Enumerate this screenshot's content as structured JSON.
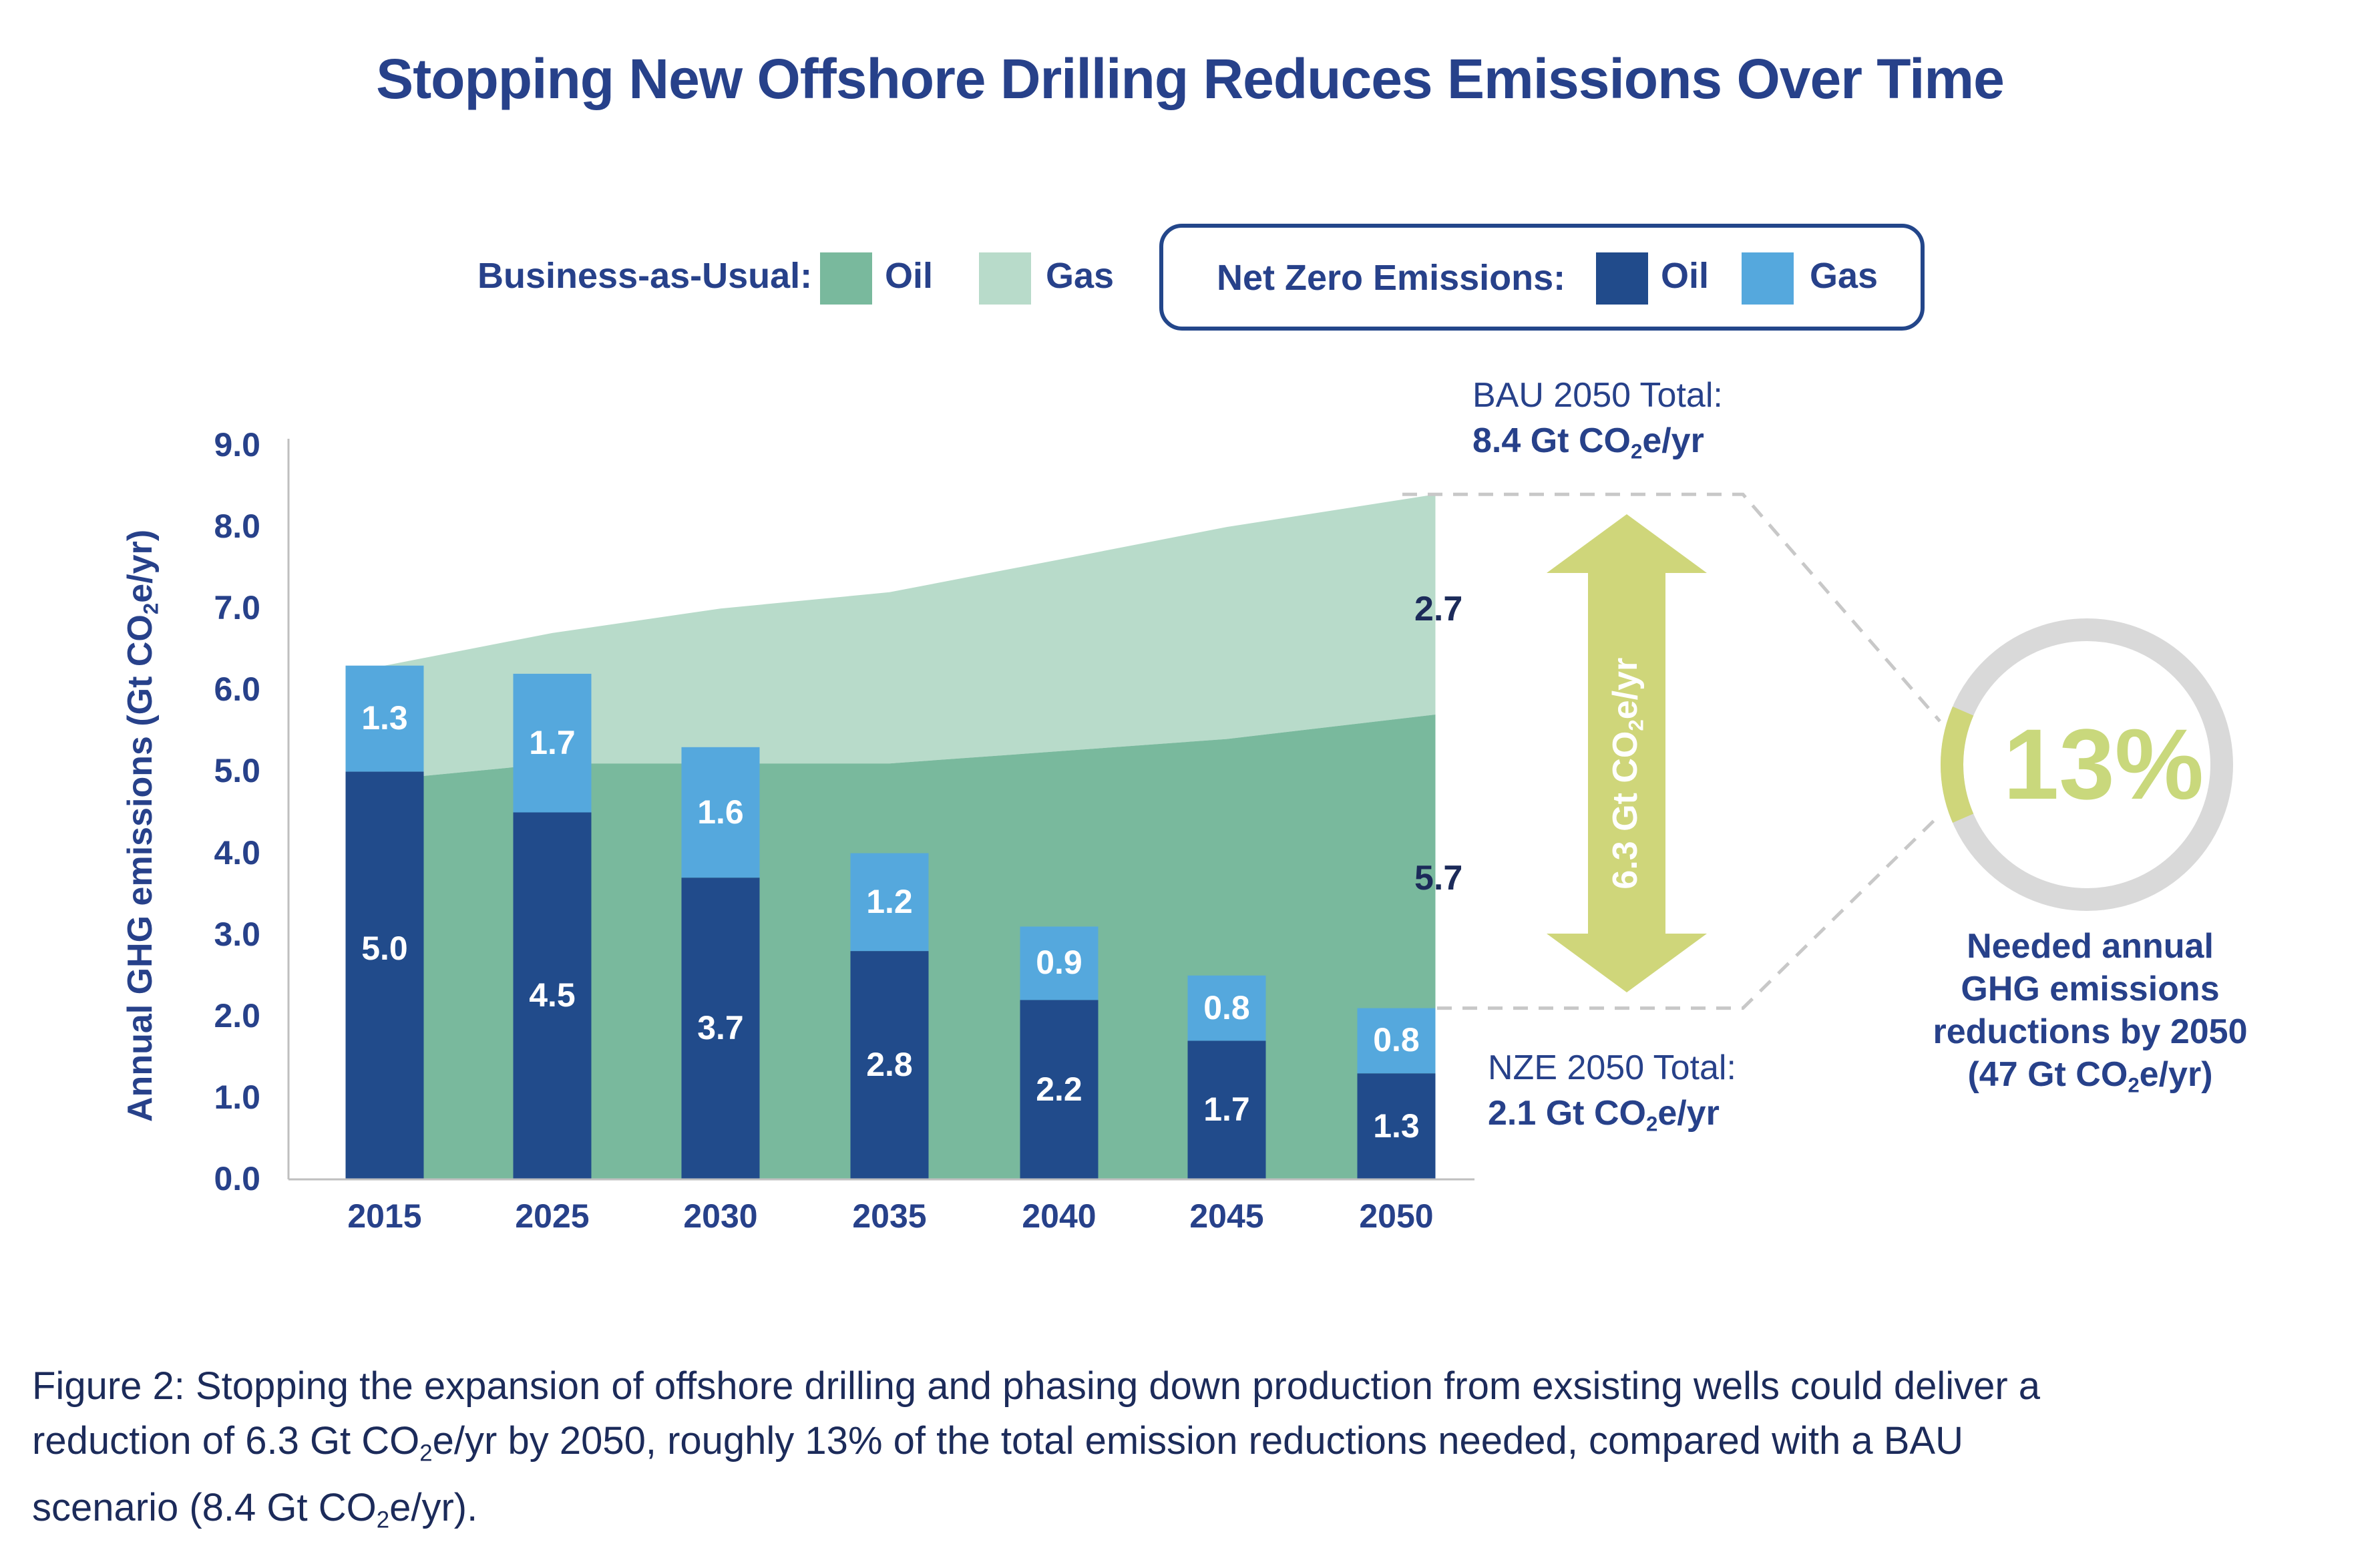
{
  "title": "Stopping New Offshore Drilling Reduces Emissions Over Time",
  "legend": {
    "bau_label": "Business-as-Usual:",
    "bau_oil": "Oil",
    "bau_gas": "Gas",
    "nze_label": "Net Zero Emissions:",
    "nze_oil": "Oil",
    "nze_gas": "Gas"
  },
  "colors": {
    "bau_oil": "#79b99d",
    "bau_gas": "#b8dbca",
    "nze_oil": "#214b8b",
    "nze_gas": "#55a8dd",
    "accent_lime": "#cfd67a",
    "ring_grey": "#d9d9d9",
    "text_navy": "#27418a"
  },
  "annotations": {
    "bau_total_line1": "BAU 2050 Total:",
    "bau_total_line2_pre": "8.4 Gt CO",
    "bau_total_line2_sub": "2",
    "bau_total_line2_post": "e/yr",
    "nze_total_line1": "NZE 2050 Total:",
    "nze_total_line2_pre": "2.1 Gt CO",
    "nze_total_line2_sub": "2",
    "nze_total_line2_post": "e/yr",
    "bau_gas_2050_label": "2.7",
    "bau_oil_2050_label": "5.7",
    "arrow_label_pre": "6.3 Gt CO",
    "arrow_label_sub": "2",
    "arrow_label_post": "e/yr",
    "percent": "13%",
    "percent_value": 0.13,
    "needed_line1": "Needed annual",
    "needed_line2": "GHG emissions",
    "needed_line3": "reductions by 2050",
    "needed_line4_pre": "(47 Gt CO",
    "needed_line4_sub": "2",
    "needed_line4_post": "e/yr)"
  },
  "caption": {
    "line1": "Figure 2: Stopping the expansion of offshore drilling and phasing down production from exsisting wells could deliver a",
    "line2_pre": "reduction of 6.3 Gt CO",
    "line2_sub": "2",
    "line2_post": "e/yr by 2050, roughly 13% of the total emission reductions needed, compared with a BAU",
    "line3_pre": "scenario (8.4 Gt CO",
    "line3_sub": "2",
    "line3_post": "e/yr)."
  },
  "chart_data": {
    "type": "bar",
    "title": "Stopping New Offshore Drilling Reduces Emissions Over Time",
    "xlabel": "",
    "ylabel_pre": "Annual GHG emissions (Gt CO",
    "ylabel_sub": "2",
    "ylabel_post": "e/yr)",
    "ylim": [
      0,
      9
    ],
    "yticks": [
      "0.0",
      "1.0",
      "2.0",
      "3.0",
      "4.0",
      "5.0",
      "6.0",
      "7.0",
      "8.0",
      "9.0"
    ],
    "categories": [
      "2015",
      "2025",
      "2030",
      "2035",
      "2040",
      "2045",
      "2050"
    ],
    "grid": false,
    "legend_position": "top",
    "series": [
      {
        "name": "Net Zero Emissions: Oil",
        "kind": "stacked-bar",
        "values": [
          5.0,
          4.5,
          3.7,
          2.8,
          2.2,
          1.7,
          1.3
        ],
        "labels": [
          "5.0",
          "4.5",
          "3.7",
          "2.8",
          "2.2",
          "1.7",
          "1.3"
        ]
      },
      {
        "name": "Net Zero Emissions: Gas",
        "kind": "stacked-bar",
        "values": [
          1.3,
          1.7,
          1.6,
          1.2,
          0.9,
          0.8,
          0.8
        ],
        "labels": [
          "1.3",
          "1.7",
          "1.6",
          "1.2",
          "0.9",
          "0.8",
          "0.8"
        ]
      },
      {
        "name": "Business-as-Usual: Oil",
        "kind": "stacked-area",
        "values": [
          4.9,
          5.1,
          5.1,
          5.1,
          5.25,
          5.4,
          5.7
        ]
      },
      {
        "name": "Business-as-Usual: Gas",
        "kind": "stacked-area",
        "values": [
          1.4,
          1.6,
          1.9,
          2.1,
          2.35,
          2.6,
          2.7
        ]
      }
    ]
  }
}
